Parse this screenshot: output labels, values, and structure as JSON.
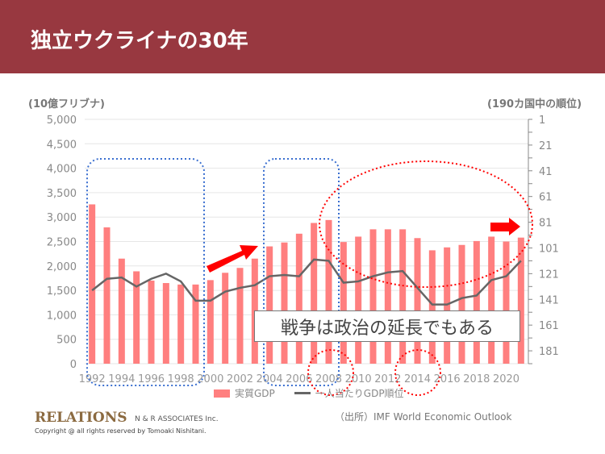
{
  "header": {
    "title": "独立ウクライナの30年"
  },
  "annotation": {
    "text": "戦争は政治の延長でもある"
  },
  "footer": {
    "logo": "RELATIONS",
    "company": "N & R ASSOCIATES Inc.",
    "copyright": "Copyright @ all rights reserved by Tomoaki Nishitani.",
    "source": "（出所）IMF World Economic Outlook"
  },
  "colors": {
    "header": "#983840",
    "bar": "#FF7F7F",
    "line": "#666666",
    "blue_box": "#3A6FD0",
    "red_mark": "#FF0000"
  },
  "chart_data": {
    "type": "bar+line",
    "title": "独立ウクライナの30年",
    "ylabel_left": "(10億フリブナ)",
    "ylabel_right": "(190カ国中の順位)",
    "ylim_left": [
      0,
      5000
    ],
    "left_ticks": [
      "5,000",
      "4,500",
      "4,000",
      "3,500",
      "3,000",
      "2,500",
      "2,000",
      "1,500",
      "1,000",
      "500",
      "0"
    ],
    "ylim_right": [
      1,
      191
    ],
    "right_ticks": [
      "1",
      "21",
      "41",
      "61",
      "81",
      "101",
      "121",
      "141",
      "161",
      "181"
    ],
    "x_tick_labels": [
      "1992",
      "1994",
      "1996",
      "1998",
      "2000",
      "2002",
      "2004",
      "2006",
      "2008",
      "2010",
      "2012",
      "2014",
      "2016",
      "2018",
      "2020"
    ],
    "categories": [
      1992,
      1993,
      1994,
      1995,
      1996,
      1997,
      1998,
      1999,
      2000,
      2001,
      2002,
      2003,
      2004,
      2005,
      2006,
      2007,
      2008,
      2009,
      2010,
      2011,
      2012,
      2013,
      2014,
      2015,
      2016,
      2017,
      2018,
      2019,
      2020,
      2021
    ],
    "series": [
      {
        "name": "実質GDP",
        "type": "bar",
        "axis": "left",
        "values": [
          3260,
          2790,
          2150,
          1890,
          1700,
          1650,
          1620,
          1620,
          1710,
          1860,
          1960,
          2150,
          2400,
          2480,
          2660,
          2880,
          2940,
          2490,
          2600,
          2750,
          2750,
          2750,
          2570,
          2320,
          2380,
          2430,
          2510,
          2600,
          2500,
          2580
        ]
      },
      {
        "name": "一人当たりGDP順位",
        "type": "line",
        "axis": "right",
        "reversed": true,
        "values": [
          134,
          125,
          124,
          131,
          125,
          121,
          127,
          142,
          142,
          135,
          132,
          130,
          123,
          122,
          123,
          110,
          111,
          128,
          127,
          123,
          120,
          119,
          132,
          145,
          145,
          140,
          138,
          126,
          123,
          111
        ]
      }
    ],
    "grid": true,
    "legend": "bottom"
  }
}
